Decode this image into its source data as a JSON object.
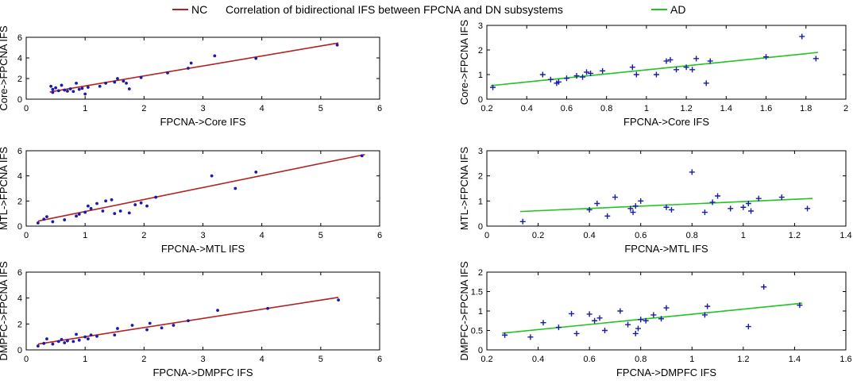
{
  "title": "Correlation of bidirectional IFS between FPCNA and DN subsystems",
  "legend": [
    {
      "label": "NC",
      "color": "#b22222"
    },
    {
      "label": "AD",
      "color": "#22c322"
    }
  ],
  "colors": {
    "marker": "#1a1aa8",
    "axis": "#000000",
    "nc_line": "#b22222",
    "ad_line": "#22c322"
  },
  "chart_data": [
    {
      "type": "scatter",
      "group": "NC",
      "xlabel": "FPCNA->Core IFS",
      "ylabel": "Core->FPCNA IFS",
      "xlim": [
        0,
        6
      ],
      "ylim": [
        0,
        6
      ],
      "xticks": [
        "0",
        "1",
        "2",
        "3",
        "4",
        "5",
        "6"
      ],
      "yticks": [
        "0",
        "2",
        "4",
        "6"
      ],
      "fit": {
        "x": [
          0.4,
          5.3
        ],
        "y": [
          0.7,
          5.45
        ]
      },
      "points": [
        [
          0.42,
          1.25
        ],
        [
          0.45,
          0.95
        ],
        [
          0.45,
          0.65
        ],
        [
          0.5,
          1.1
        ],
        [
          0.55,
          0.82
        ],
        [
          0.6,
          1.35
        ],
        [
          0.65,
          0.88
        ],
        [
          0.7,
          0.78
        ],
        [
          0.75,
          1.0
        ],
        [
          0.8,
          0.75
        ],
        [
          0.85,
          1.55
        ],
        [
          0.9,
          0.95
        ],
        [
          0.95,
          1.05
        ],
        [
          1.0,
          0.5
        ],
        [
          1.05,
          1.15
        ],
        [
          1.25,
          1.25
        ],
        [
          1.35,
          1.55
        ],
        [
          1.5,
          1.65
        ],
        [
          1.55,
          2.0
        ],
        [
          1.65,
          1.75
        ],
        [
          1.7,
          1.55
        ],
        [
          1.75,
          1.0
        ],
        [
          1.95,
          2.1
        ],
        [
          2.4,
          2.55
        ],
        [
          2.75,
          3.0
        ],
        [
          2.8,
          3.5
        ],
        [
          3.2,
          4.2
        ],
        [
          3.9,
          3.95
        ],
        [
          5.28,
          5.25
        ]
      ]
    },
    {
      "type": "scatter",
      "group": "AD",
      "xlabel": "FPCNA->Core IFS",
      "ylabel": "Core->FPCNA IFS",
      "xlim": [
        0.2,
        2
      ],
      "ylim": [
        0,
        3
      ],
      "xticks": [
        "0.2",
        "0.4",
        "0.6",
        "0.8",
        "1",
        "1.2",
        "1.4",
        "1.6",
        "1.8",
        "2"
      ],
      "yticks": [
        "0",
        "1",
        "2",
        "3"
      ],
      "fit": {
        "x": [
          0.22,
          1.86
        ],
        "y": [
          0.55,
          1.9
        ]
      },
      "points": [
        [
          0.23,
          0.48
        ],
        [
          0.48,
          1.0
        ],
        [
          0.52,
          0.8
        ],
        [
          0.55,
          0.65
        ],
        [
          0.56,
          0.7
        ],
        [
          0.6,
          0.85
        ],
        [
          0.65,
          0.95
        ],
        [
          0.68,
          0.9
        ],
        [
          0.7,
          1.1
        ],
        [
          0.72,
          1.05
        ],
        [
          0.78,
          1.15
        ],
        [
          0.93,
          1.3
        ],
        [
          0.95,
          1.0
        ],
        [
          1.05,
          1.0
        ],
        [
          1.1,
          1.55
        ],
        [
          1.12,
          1.6
        ],
        [
          1.15,
          1.2
        ],
        [
          1.2,
          1.3
        ],
        [
          1.23,
          1.2
        ],
        [
          1.25,
          1.65
        ],
        [
          1.3,
          0.65
        ],
        [
          1.32,
          1.55
        ],
        [
          1.6,
          1.72
        ],
        [
          1.78,
          2.55
        ],
        [
          1.85,
          1.65
        ]
      ]
    },
    {
      "type": "scatter",
      "group": "NC",
      "xlabel": "FPCNA->MTL IFS",
      "ylabel": "MTL->FPCNA IFS",
      "xlim": [
        0,
        6
      ],
      "ylim": [
        0,
        6
      ],
      "xticks": [
        "0",
        "1",
        "2",
        "3",
        "4",
        "5",
        "6"
      ],
      "yticks": [
        "0",
        "2",
        "4",
        "6"
      ],
      "fit": {
        "x": [
          0.2,
          5.75
        ],
        "y": [
          0.4,
          5.7
        ]
      },
      "points": [
        [
          0.2,
          0.25
        ],
        [
          0.3,
          0.55
        ],
        [
          0.35,
          0.75
        ],
        [
          0.45,
          0.35
        ],
        [
          0.65,
          0.5
        ],
        [
          0.85,
          0.8
        ],
        [
          0.9,
          0.95
        ],
        [
          1.0,
          1.1
        ],
        [
          1.05,
          1.6
        ],
        [
          1.1,
          1.4
        ],
        [
          1.2,
          1.8
        ],
        [
          1.3,
          1.2
        ],
        [
          1.35,
          2.0
        ],
        [
          1.45,
          2.1
        ],
        [
          1.5,
          1.0
        ],
        [
          1.6,
          1.2
        ],
        [
          1.75,
          1.05
        ],
        [
          1.85,
          1.7
        ],
        [
          1.95,
          1.85
        ],
        [
          2.05,
          1.6
        ],
        [
          2.2,
          2.3
        ],
        [
          3.15,
          4.0
        ],
        [
          3.55,
          3.0
        ],
        [
          3.9,
          4.3
        ],
        [
          5.7,
          5.6
        ]
      ]
    },
    {
      "type": "scatter",
      "group": "AD",
      "xlabel": "FPCNA->MTL IFS",
      "ylabel": "MTL->FPCNA IFS",
      "xlim": [
        0,
        1.4
      ],
      "ylim": [
        0,
        3
      ],
      "xticks": [
        "0",
        "0.2",
        "0.4",
        "0.6",
        "0.8",
        "1",
        "1.2",
        "1.4"
      ],
      "yticks": [
        "0",
        "1",
        "2",
        "3"
      ],
      "fit": {
        "x": [
          0.13,
          1.27
        ],
        "y": [
          0.58,
          1.1
        ]
      },
      "points": [
        [
          0.14,
          0.18
        ],
        [
          0.4,
          0.65
        ],
        [
          0.43,
          0.9
        ],
        [
          0.47,
          0.4
        ],
        [
          0.5,
          1.15
        ],
        [
          0.56,
          0.7
        ],
        [
          0.57,
          0.55
        ],
        [
          0.58,
          0.8
        ],
        [
          0.6,
          1.0
        ],
        [
          0.7,
          0.75
        ],
        [
          0.72,
          0.65
        ],
        [
          0.8,
          2.15
        ],
        [
          0.85,
          0.55
        ],
        [
          0.88,
          0.95
        ],
        [
          0.9,
          1.2
        ],
        [
          0.95,
          0.7
        ],
        [
          1.0,
          0.75
        ],
        [
          1.02,
          0.9
        ],
        [
          1.03,
          0.6
        ],
        [
          1.06,
          1.1
        ],
        [
          1.15,
          1.15
        ],
        [
          1.25,
          0.7
        ]
      ]
    },
    {
      "type": "scatter",
      "group": "NC",
      "xlabel": "FPCNA->DMPFC IFS",
      "ylabel": "DMPFC->FPCNA IFS",
      "xlim": [
        0,
        6
      ],
      "ylim": [
        0,
        6
      ],
      "xticks": [
        "0",
        "1",
        "2",
        "3",
        "4",
        "5",
        "6"
      ],
      "yticks": [
        "0",
        "2",
        "4",
        "6"
      ],
      "fit": {
        "x": [
          0.2,
          5.3
        ],
        "y": [
          0.45,
          4.05
        ]
      },
      "points": [
        [
          0.2,
          0.3
        ],
        [
          0.3,
          0.5
        ],
        [
          0.35,
          0.85
        ],
        [
          0.45,
          0.45
        ],
        [
          0.55,
          0.65
        ],
        [
          0.6,
          0.8
        ],
        [
          0.65,
          0.55
        ],
        [
          0.7,
          0.7
        ],
        [
          0.8,
          0.65
        ],
        [
          0.85,
          1.2
        ],
        [
          0.9,
          0.75
        ],
        [
          1.0,
          1.0
        ],
        [
          1.05,
          0.85
        ],
        [
          1.1,
          1.15
        ],
        [
          1.2,
          1.05
        ],
        [
          1.5,
          1.15
        ],
        [
          1.55,
          1.65
        ],
        [
          1.8,
          1.9
        ],
        [
          2.05,
          1.55
        ],
        [
          2.1,
          2.05
        ],
        [
          2.3,
          1.7
        ],
        [
          2.5,
          1.9
        ],
        [
          2.75,
          2.25
        ],
        [
          3.25,
          3.05
        ],
        [
          4.1,
          3.2
        ],
        [
          5.3,
          3.85
        ]
      ]
    },
    {
      "type": "scatter",
      "group": "AD",
      "xlabel": "FPCNA->DMPFC IFS",
      "ylabel": "DMPFC->FPCNA IFS",
      "xlim": [
        0.2,
        1.6
      ],
      "ylim": [
        0,
        2
      ],
      "xticks": [
        "0.2",
        "0.4",
        "0.6",
        "0.8",
        "1",
        "1.2",
        "1.4",
        "1.6"
      ],
      "yticks": [
        "0",
        "0.5",
        "1",
        "1.5",
        "2"
      ],
      "fit": {
        "x": [
          0.26,
          1.43
        ],
        "y": [
          0.43,
          1.2
        ]
      },
      "points": [
        [
          0.27,
          0.38
        ],
        [
          0.37,
          0.33
        ],
        [
          0.42,
          0.7
        ],
        [
          0.48,
          0.58
        ],
        [
          0.53,
          0.93
        ],
        [
          0.55,
          0.42
        ],
        [
          0.6,
          0.92
        ],
        [
          0.62,
          0.75
        ],
        [
          0.64,
          0.82
        ],
        [
          0.66,
          0.5
        ],
        [
          0.72,
          1.0
        ],
        [
          0.75,
          0.65
        ],
        [
          0.78,
          0.42
        ],
        [
          0.79,
          0.55
        ],
        [
          0.8,
          0.78
        ],
        [
          0.82,
          0.75
        ],
        [
          0.85,
          0.9
        ],
        [
          0.88,
          0.8
        ],
        [
          0.9,
          1.08
        ],
        [
          1.05,
          0.9
        ],
        [
          1.06,
          1.12
        ],
        [
          1.22,
          0.6
        ],
        [
          1.28,
          1.62
        ],
        [
          1.42,
          1.15
        ]
      ]
    }
  ]
}
